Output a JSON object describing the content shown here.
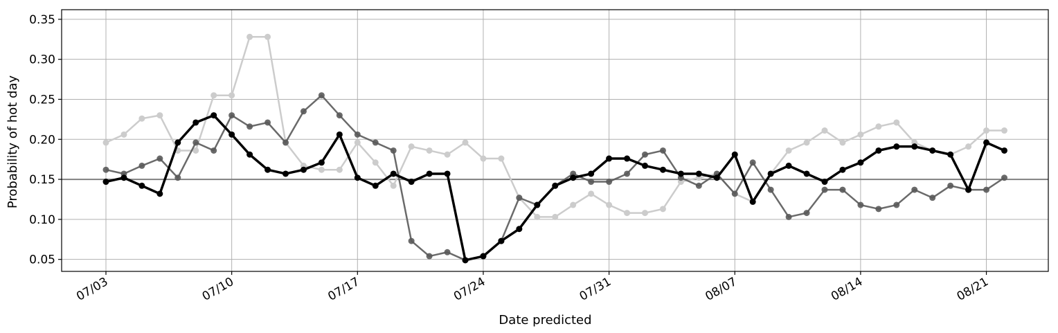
{
  "chart_data": {
    "type": "line",
    "title": "",
    "xlabel": "Date predicted",
    "ylabel": "Probability of hot day",
    "x_start": "07/03",
    "x_tick_labels": [
      "07/03",
      "07/10",
      "07/17",
      "07/24",
      "07/31",
      "08/07",
      "08/14",
      "08/21"
    ],
    "y_tick_labels": [
      "0.05",
      "0.10",
      "0.15",
      "0.20",
      "0.25",
      "0.30",
      "0.35"
    ],
    "y_ticks": [
      0.05,
      0.1,
      0.15,
      0.2,
      0.25,
      0.3,
      0.35
    ],
    "ylim": [
      0.035,
      0.362
    ],
    "grid": true,
    "baseline": {
      "value": 0.15,
      "color": "#808080"
    },
    "series": [
      {
        "color": "#cccccc",
        "x": [
          "07/03",
          "07/04",
          "07/05",
          "07/06",
          "07/07",
          "07/08",
          "07/09",
          "07/10",
          "07/11",
          "07/12",
          "07/13",
          "07/14",
          "07/15",
          "07/16",
          "07/17",
          "07/18",
          "07/19",
          "07/20",
          "07/21",
          "07/22",
          "07/23",
          "07/24",
          "07/25",
          "07/26",
          "07/27",
          "07/28",
          "07/29",
          "07/30",
          "07/31",
          "08/01",
          "08/02",
          "08/03",
          "08/04",
          "08/05",
          "08/06",
          "08/07",
          "08/08",
          "08/09",
          "08/10",
          "08/11",
          "08/12",
          "08/13",
          "08/14",
          "08/15",
          "08/16",
          "08/17",
          "08/18",
          "08/19",
          "08/20",
          "08/21",
          "08/22"
        ],
        "values": [
          0.196,
          0.206,
          0.226,
          0.23,
          0.186,
          0.186,
          0.255,
          0.255,
          0.328,
          0.328,
          0.196,
          0.167,
          0.162,
          0.162,
          0.196,
          0.171,
          0.142,
          0.191,
          0.186,
          0.181,
          0.196,
          0.176,
          0.176,
          0.127,
          0.103,
          0.103,
          0.118,
          0.132,
          0.118,
          0.108,
          0.108,
          0.113,
          0.147,
          0.152,
          0.157,
          0.132,
          0.122,
          0.157,
          0.186,
          0.196,
          0.211,
          0.196,
          0.206,
          0.216,
          0.221,
          0.196,
          0.186,
          0.181,
          0.191,
          0.211,
          0.211
        ]
      },
      {
        "color": "#5a5a5a",
        "x": [
          "07/03",
          "07/04",
          "07/05",
          "07/06",
          "07/07",
          "07/08",
          "07/09",
          "07/10",
          "07/11",
          "07/12",
          "07/13",
          "07/14",
          "07/15",
          "07/16",
          "07/17",
          "07/18",
          "07/19",
          "07/20",
          "07/21",
          "07/22",
          "07/23",
          "07/24",
          "07/25",
          "07/26",
          "07/27",
          "07/28",
          "07/29",
          "07/30",
          "07/31",
          "08/01",
          "08/02",
          "08/03",
          "08/04",
          "08/05",
          "08/06",
          "08/07",
          "08/08",
          "08/09",
          "08/10",
          "08/11",
          "08/12",
          "08/13",
          "08/14",
          "08/15",
          "08/16",
          "08/17",
          "08/18",
          "08/19",
          "08/20",
          "08/21",
          "08/22"
        ],
        "values": [
          0.162,
          0.157,
          0.167,
          0.176,
          0.152,
          0.196,
          0.186,
          0.23,
          0.216,
          0.221,
          0.196,
          0.235,
          0.255,
          0.23,
          0.206,
          0.196,
          0.186,
          0.073,
          0.054,
          0.059,
          0.049,
          0.054,
          0.073,
          0.127,
          0.118,
          0.142,
          0.157,
          0.147,
          0.147,
          0.157,
          0.181,
          0.186,
          0.152,
          0.142,
          0.157,
          0.132,
          0.171,
          0.137,
          0.103,
          0.108,
          0.137,
          0.137,
          0.118,
          0.113,
          0.118,
          0.137,
          0.127,
          0.142,
          0.137,
          0.137,
          0.152
        ]
      },
      {
        "color": "#000000",
        "x": [
          "07/03",
          "07/04",
          "07/05",
          "07/06",
          "07/07",
          "07/08",
          "07/09",
          "07/10",
          "07/11",
          "07/12",
          "07/13",
          "07/14",
          "07/15",
          "07/16",
          "07/17",
          "07/18",
          "07/19",
          "07/20",
          "07/21",
          "07/22",
          "07/23",
          "07/24",
          "07/25",
          "07/26",
          "07/27",
          "07/28",
          "07/29",
          "07/30",
          "07/31",
          "08/01",
          "08/02",
          "08/03",
          "08/04",
          "08/05",
          "08/06",
          "08/07",
          "08/08",
          "08/09",
          "08/10",
          "08/11",
          "08/12",
          "08/13",
          "08/14",
          "08/15",
          "08/16",
          "08/17",
          "08/18",
          "08/19",
          "08/20",
          "08/21",
          "08/22"
        ],
        "values": [
          0.147,
          0.152,
          0.142,
          0.132,
          0.196,
          0.221,
          0.23,
          0.206,
          0.181,
          0.162,
          0.157,
          0.162,
          0.171,
          0.206,
          0.152,
          0.142,
          0.157,
          0.147,
          0.157,
          0.157,
          0.049,
          0.054,
          0.073,
          0.088,
          0.118,
          0.142,
          0.152,
          0.157,
          0.176,
          0.176,
          0.167,
          0.162,
          0.157,
          0.157,
          0.152,
          0.181,
          0.122,
          0.157,
          0.167,
          0.157,
          0.147,
          0.162,
          0.171,
          0.186,
          0.191,
          0.191,
          0.186,
          0.181,
          0.137,
          0.196,
          0.186
        ]
      }
    ]
  }
}
